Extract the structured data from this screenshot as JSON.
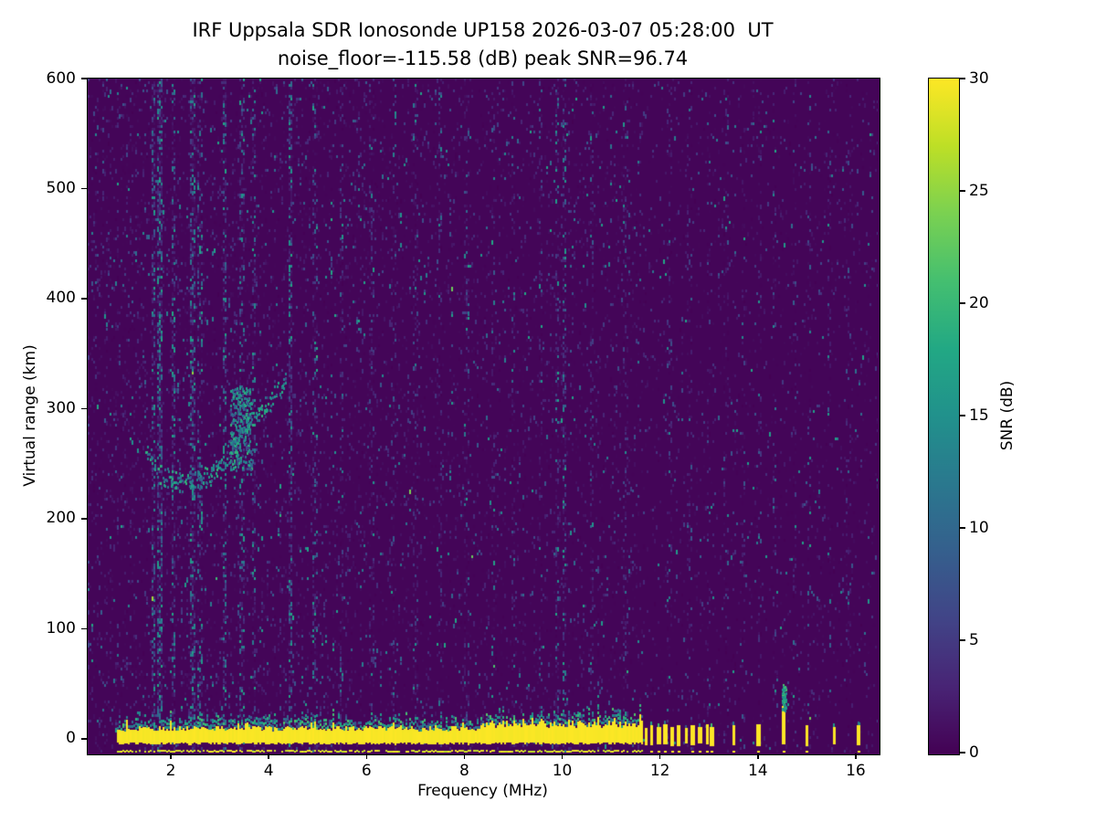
{
  "figure": {
    "title": "IRF Uppsala SDR Ionosonde UP158 2026-03-07 05:28:00  UT",
    "subtitle": "noise_floor=-115.58 (dB) peak SNR=96.74"
  },
  "chart_data": {
    "type": "heatmap",
    "title": "IRF Uppsala SDR Ionosonde UP158 2026-03-07 05:28:00  UT",
    "subtitle": "noise_floor=-115.58 (dB) peak SNR=96.74",
    "station": "UP158",
    "timestamp_ut": "2026-03-07 05:28:00",
    "noise_floor_db": -115.58,
    "peak_snr_db": 96.74,
    "xlabel": "Frequency (MHz)",
    "ylabel": "Virtual range (km)",
    "xlim": [
      0.3,
      16.45
    ],
    "ylim": [
      -12.5,
      600
    ],
    "xticks": [
      2,
      4,
      6,
      8,
      10,
      12,
      14,
      16
    ],
    "yticks": [
      0,
      100,
      200,
      300,
      400,
      500,
      600
    ],
    "grid": false,
    "colorbar": {
      "label": "SNR (dB)",
      "min": 0,
      "max": 30,
      "ticks": [
        0,
        5,
        10,
        15,
        20,
        25,
        30
      ],
      "colormap": "viridis",
      "position": "right"
    },
    "colormap_stops": [
      "#440154",
      "#482475",
      "#414487",
      "#355f8d",
      "#2a788e",
      "#21918c",
      "#22a884",
      "#44bf70",
      "#7ad151",
      "#bddf26",
      "#fde725"
    ],
    "features": {
      "ground_echo": {
        "freq_range_mhz": [
          0.9,
          11.62
        ],
        "range_km": [
          -5,
          12
        ],
        "snr_db": 30,
        "thicker_freq_range_mhz": [
          8.3,
          11.62
        ],
        "thicker_top_km": 18
      },
      "bottom_edge_line": {
        "freq_range_mhz": [
          0.9,
          11.62
        ],
        "range_km": -10.5,
        "snr_db": 27
      },
      "transmit_pulses_mhz_topkm": [
        [
          11.7,
          10
        ],
        [
          11.82,
          12
        ],
        [
          11.96,
          11
        ],
        [
          12.1,
          13
        ],
        [
          12.24,
          11
        ],
        [
          12.38,
          12
        ],
        [
          12.52,
          10
        ],
        [
          12.66,
          12
        ],
        [
          12.8,
          11
        ],
        [
          12.95,
          13
        ],
        [
          13.05,
          11
        ],
        [
          13.5,
          12
        ],
        [
          14.0,
          13
        ],
        [
          14.52,
          30
        ],
        [
          15.0,
          12
        ],
        [
          15.55,
          11
        ],
        [
          16.05,
          12
        ]
      ],
      "tall_pulse": {
        "freq_mhz": 14.52,
        "yellow_top_km": 30,
        "green_top_km": 48
      },
      "ionospheric_trace": {
        "points_mhz_km": [
          [
            1.5,
            262
          ],
          [
            1.65,
            248
          ],
          [
            1.8,
            240
          ],
          [
            2.0,
            236
          ],
          [
            2.2,
            234
          ],
          [
            2.4,
            234
          ],
          [
            2.6,
            236
          ],
          [
            2.8,
            240
          ],
          [
            3.0,
            248
          ],
          [
            3.15,
            258
          ],
          [
            3.3,
            268
          ],
          [
            3.45,
            278
          ],
          [
            3.6,
            286
          ],
          [
            3.75,
            294
          ],
          [
            3.9,
            302
          ],
          [
            4.05,
            310
          ],
          [
            4.2,
            318
          ],
          [
            4.35,
            326
          ]
        ],
        "snr_db_range": [
          8,
          20
        ],
        "spread_km": 9
      },
      "trace_cluster": {
        "freq_range_mhz": [
          3.2,
          3.65
        ],
        "range_km": [
          245,
          320
        ],
        "snr_db_range": [
          5,
          20
        ]
      },
      "rfi_columns_mhz_strength": [
        [
          1.65,
          2.2
        ],
        [
          1.78,
          2.6
        ],
        [
          2.05,
          1.8
        ],
        [
          2.45,
          2.2
        ],
        [
          2.6,
          1.5
        ],
        [
          3.1,
          2.2
        ],
        [
          3.45,
          1.7
        ],
        [
          3.7,
          1.5
        ],
        [
          4.45,
          2.6
        ],
        [
          4.95,
          1.5
        ],
        [
          5.5,
          1.3
        ],
        [
          6.1,
          1.3
        ],
        [
          6.55,
          1.2
        ],
        [
          7.0,
          1.3
        ],
        [
          7.5,
          1.2
        ],
        [
          8.05,
          1.3
        ],
        [
          8.6,
          1.2
        ],
        [
          9.0,
          1.3
        ],
        [
          9.55,
          1.2
        ],
        [
          9.9,
          1.8
        ],
        [
          10.05,
          2.2
        ],
        [
          10.6,
          1.3
        ],
        [
          11.3,
          1.3
        ],
        [
          12.2,
          1.4
        ],
        [
          12.6,
          1.4
        ],
        [
          13.0,
          1.4
        ],
        [
          13.35,
          1.2
        ],
        [
          13.7,
          1.2
        ],
        [
          14.05,
          1.4
        ],
        [
          14.35,
          1.2
        ],
        [
          14.75,
          1.2
        ],
        [
          15.05,
          1.4
        ],
        [
          15.45,
          1.2
        ],
        [
          15.85,
          1.2
        ]
      ],
      "background_noise": {
        "speckle_snr_db_mean": 2.5,
        "density_below_2p5mhz": 0.13,
        "density_below_6mhz": 0.11,
        "density_6_to_11p6mhz": 0.085,
        "density_above_11p6mhz": 0.055
      }
    }
  }
}
